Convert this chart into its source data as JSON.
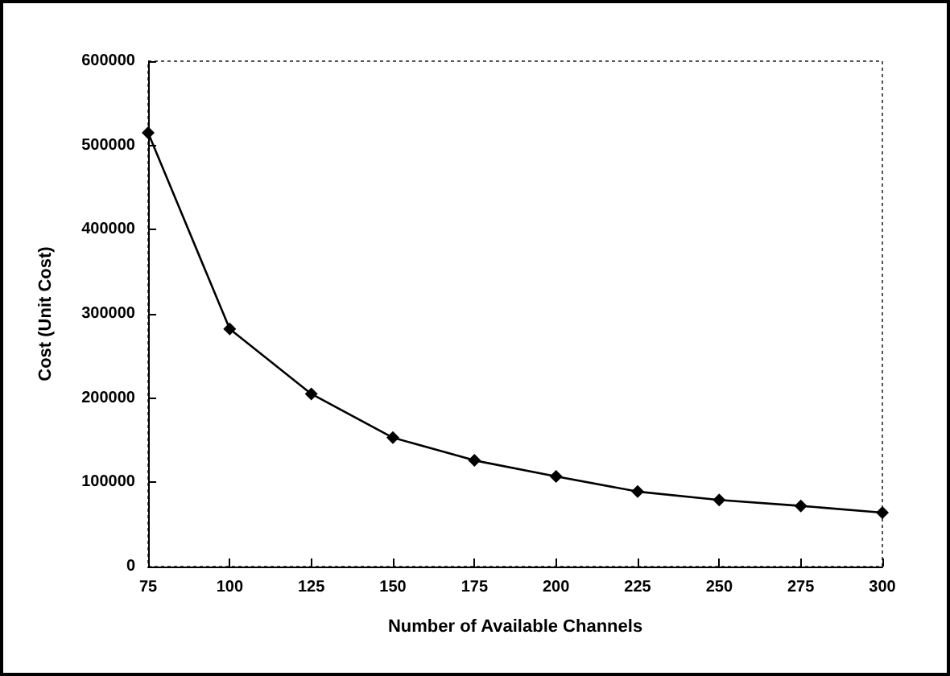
{
  "chart_data": {
    "type": "line",
    "xlabel": "Number of Available Channels",
    "ylabel": "Cost (Unit Cost)",
    "x": [
      75,
      100,
      125,
      150,
      175,
      200,
      225,
      250,
      275,
      300
    ],
    "series": [
      {
        "color": "#000000",
        "values": [
          515000,
          282000,
          205000,
          153000,
          126000,
          107000,
          89000,
          79000,
          72000,
          64000
        ]
      }
    ],
    "xlim": [
      75,
      300
    ],
    "xticks": [
      75,
      100,
      125,
      150,
      175,
      200,
      225,
      250,
      275,
      300
    ],
    "ylim": [
      0,
      600000
    ],
    "yticks": [
      0,
      100000,
      200000,
      300000,
      400000,
      500000,
      600000
    ],
    "marker": "diamond",
    "line_style": "solid",
    "grid": false
  }
}
